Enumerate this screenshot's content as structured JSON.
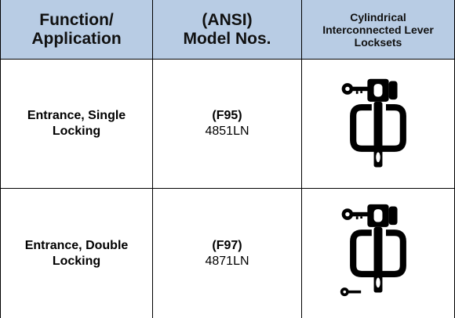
{
  "table": {
    "header": [
      [
        "Function/",
        "Application"
      ],
      [
        "(ANSI)",
        "Model Nos."
      ],
      [
        "Cylindrical",
        "Interconnected Lever",
        "Locksets"
      ]
    ],
    "rows": [
      {
        "function": [
          "Entrance, Single",
          "Locking"
        ],
        "code": "(F95)",
        "model": "4851LN"
      },
      {
        "function": [
          "Entrance, Double",
          "Locking"
        ],
        "code": "(F97)",
        "model": "4871LN"
      }
    ]
  }
}
